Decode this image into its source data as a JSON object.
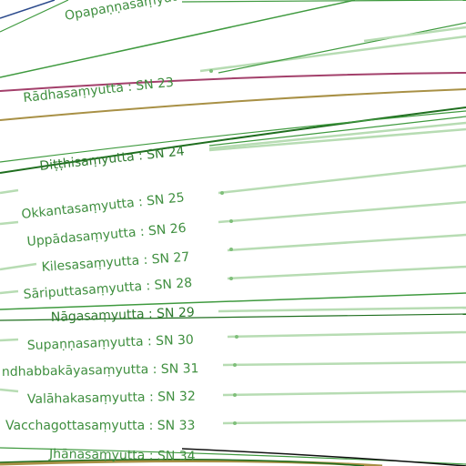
{
  "labels": [
    {
      "id": "sn22",
      "text": "Opapaṇṇasaṃyutta"
    },
    {
      "id": "sn23",
      "text": "Rādhasaṃyutta : SN 23"
    },
    {
      "id": "sn24",
      "text": "Diṭṭhisaṃyutta : SN 24"
    },
    {
      "id": "sn25",
      "text": "Okkantasaṃyutta : SN 25"
    },
    {
      "id": "sn26",
      "text": "Uppādasaṃyutta : SN 26"
    },
    {
      "id": "sn27",
      "text": "Kilesasaṃyutta : SN 27"
    },
    {
      "id": "sn28",
      "text": "Sāriputtasaṃyutta : SN 28"
    },
    {
      "id": "sn29",
      "text": "Nāgasaṃyutta : SN 29"
    },
    {
      "id": "sn30",
      "text": "Supaṇṇasaṃyutta : SN 30"
    },
    {
      "id": "sn31",
      "text": "ndhabbakāyasaṃyutta : SN 31"
    },
    {
      "id": "sn32",
      "text": "Valāhakasaṃyutta : SN 32"
    },
    {
      "id": "sn33",
      "text": "Vacchagottasaṃyutta : SN 33"
    },
    {
      "id": "sn34",
      "text": "Jhānasaṃyutta : SN 34"
    }
  ],
  "colors": {
    "green": "#3f9a3f",
    "light_green": "#b7dcb3",
    "dark_green": "#1f6e1f",
    "magenta": "#a3406b",
    "olive": "#a89045",
    "navy": "#2b4a8c",
    "black": "#111111"
  }
}
